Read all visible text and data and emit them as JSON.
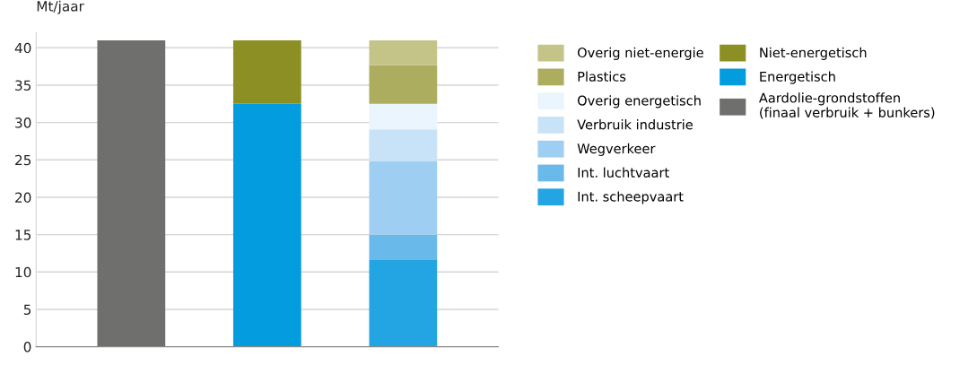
{
  "chart_data": {
    "type": "bar",
    "stacked": true,
    "ylabel": "Mt/jaar",
    "categories": [
      null,
      null,
      null
    ],
    "series": [
      {
        "name": "Aardolie-grondstoffen\n(finaal verbruik + bunkers)",
        "color": "#6f6f6e",
        "values": [
          41,
          null,
          null
        ]
      },
      {
        "name": "Energetisch",
        "color": "#039ddf",
        "values": [
          null,
          32.5,
          null
        ]
      },
      {
        "name": "Niet-energetisch",
        "color": "#8c9024",
        "values": [
          null,
          8.5,
          null
        ]
      },
      {
        "name": "Int. scheepvaart",
        "color": "#22a5e2",
        "values": [
          null,
          null,
          11.6
        ]
      },
      {
        "name": "Int. luchtvaart",
        "color": "#69b9ea",
        "values": [
          null,
          null,
          3.4
        ]
      },
      {
        "name": "Wegverkeer",
        "color": "#9fcef3",
        "values": [
          null,
          null,
          9.8
        ]
      },
      {
        "name": "Verbruik industrie",
        "color": "#c8e3f8",
        "values": [
          null,
          null,
          4.3
        ]
      },
      {
        "name": "Overig energetisch",
        "color": "#eaf5fd",
        "values": [
          null,
          null,
          3.4
        ]
      },
      {
        "name": "Plastics",
        "color": "#adad5f",
        "values": [
          null,
          null,
          5.2
        ]
      },
      {
        "name": "Overig niet-energie",
        "color": "#c4c489",
        "values": [
          null,
          null,
          3.3
        ]
      }
    ],
    "ylim": [
      0,
      42
    ],
    "yticks": [
      0,
      5,
      10,
      15,
      20,
      25,
      30,
      35,
      40
    ],
    "grid": "y",
    "legend": "right",
    "tick_labels": "y"
  }
}
